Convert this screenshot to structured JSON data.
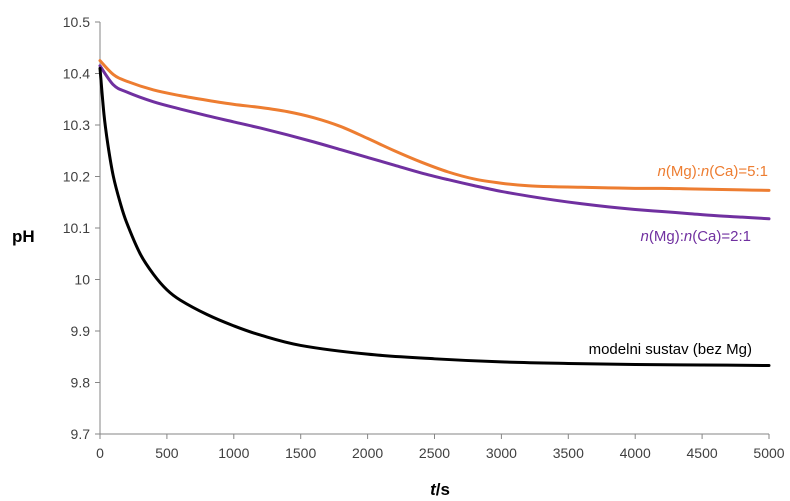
{
  "chart_data": {
    "type": "line",
    "title": "",
    "xlabel_parts": [
      {
        "text": "t",
        "italic": true
      },
      {
        "text": "/s",
        "italic": false
      }
    ],
    "ylabel": "pH",
    "xlim": [
      0,
      5000
    ],
    "ylim": [
      9.7,
      10.5
    ],
    "x_ticks": [
      0,
      500,
      1000,
      1500,
      2000,
      2500,
      3000,
      3500,
      4000,
      4500,
      5000
    ],
    "y_ticks": [
      9.7,
      9.8,
      9.9,
      10,
      10.1,
      10.2,
      10.3,
      10.4,
      10.5
    ],
    "x_tick_labels": [
      "0",
      "500",
      "1000",
      "1500",
      "2000",
      "2500",
      "3000",
      "3500",
      "4000",
      "4500",
      "5000"
    ],
    "y_tick_labels": [
      "9.7",
      "9.8",
      "9.9",
      "10",
      "10.1",
      "10.2",
      "10.3",
      "10.4",
      "10.5"
    ],
    "grid": false,
    "legend": "inline labels",
    "series": [
      {
        "color": "#ed7d31",
        "label_parts": [
          {
            "text": "n",
            "italic": true
          },
          {
            "text": "(Mg):",
            "italic": false
          },
          {
            "text": "n",
            "italic": true
          },
          {
            "text": "(Ca)=5:1",
            "italic": false
          }
        ],
        "x": [
          0,
          100,
          200,
          400,
          600,
          800,
          1000,
          1200,
          1400,
          1600,
          1800,
          2000,
          2200,
          2400,
          2600,
          2800,
          3000,
          3200,
          3400,
          3600,
          3800,
          4000,
          4200,
          4400,
          4600,
          4800,
          5000
        ],
        "y": [
          10.425,
          10.398,
          10.385,
          10.368,
          10.357,
          10.348,
          10.34,
          10.334,
          10.326,
          10.314,
          10.297,
          10.274,
          10.25,
          10.228,
          10.209,
          10.195,
          10.187,
          10.182,
          10.18,
          10.179,
          10.178,
          10.177,
          10.177,
          10.176,
          10.175,
          10.174,
          10.173
        ]
      },
      {
        "color": "#7030a0",
        "label_parts": [
          {
            "text": "n",
            "italic": true
          },
          {
            "text": "(Mg):",
            "italic": false
          },
          {
            "text": "n",
            "italic": true
          },
          {
            "text": "(Ca)=2:1",
            "italic": false
          }
        ],
        "x": [
          0,
          100,
          200,
          400,
          600,
          800,
          1000,
          1200,
          1400,
          1600,
          1800,
          2000,
          2200,
          2400,
          2600,
          2800,
          3000,
          3200,
          3400,
          3600,
          3800,
          4000,
          4200,
          4400,
          4600,
          4800,
          5000
        ],
        "y": [
          10.415,
          10.378,
          10.364,
          10.345,
          10.331,
          10.318,
          10.306,
          10.294,
          10.281,
          10.267,
          10.252,
          10.237,
          10.222,
          10.207,
          10.194,
          10.182,
          10.171,
          10.162,
          10.154,
          10.147,
          10.141,
          10.136,
          10.132,
          10.128,
          10.124,
          10.121,
          10.118
        ]
      },
      {
        "color": "#000000",
        "label_parts": [
          {
            "text": "modelni sustav (bez Mg)",
            "italic": false
          }
        ],
        "x": [
          0,
          30,
          60,
          100,
          150,
          200,
          300,
          400,
          500,
          600,
          800,
          1000,
          1200,
          1500,
          2000,
          2500,
          3000,
          3500,
          4000,
          4500,
          5000
        ],
        "y": [
          10.41,
          10.32,
          10.26,
          10.2,
          10.15,
          10.11,
          10.05,
          10.01,
          9.98,
          9.96,
          9.932,
          9.91,
          9.892,
          9.872,
          9.855,
          9.846,
          9.84,
          9.837,
          9.835,
          9.834,
          9.833
        ]
      }
    ]
  }
}
